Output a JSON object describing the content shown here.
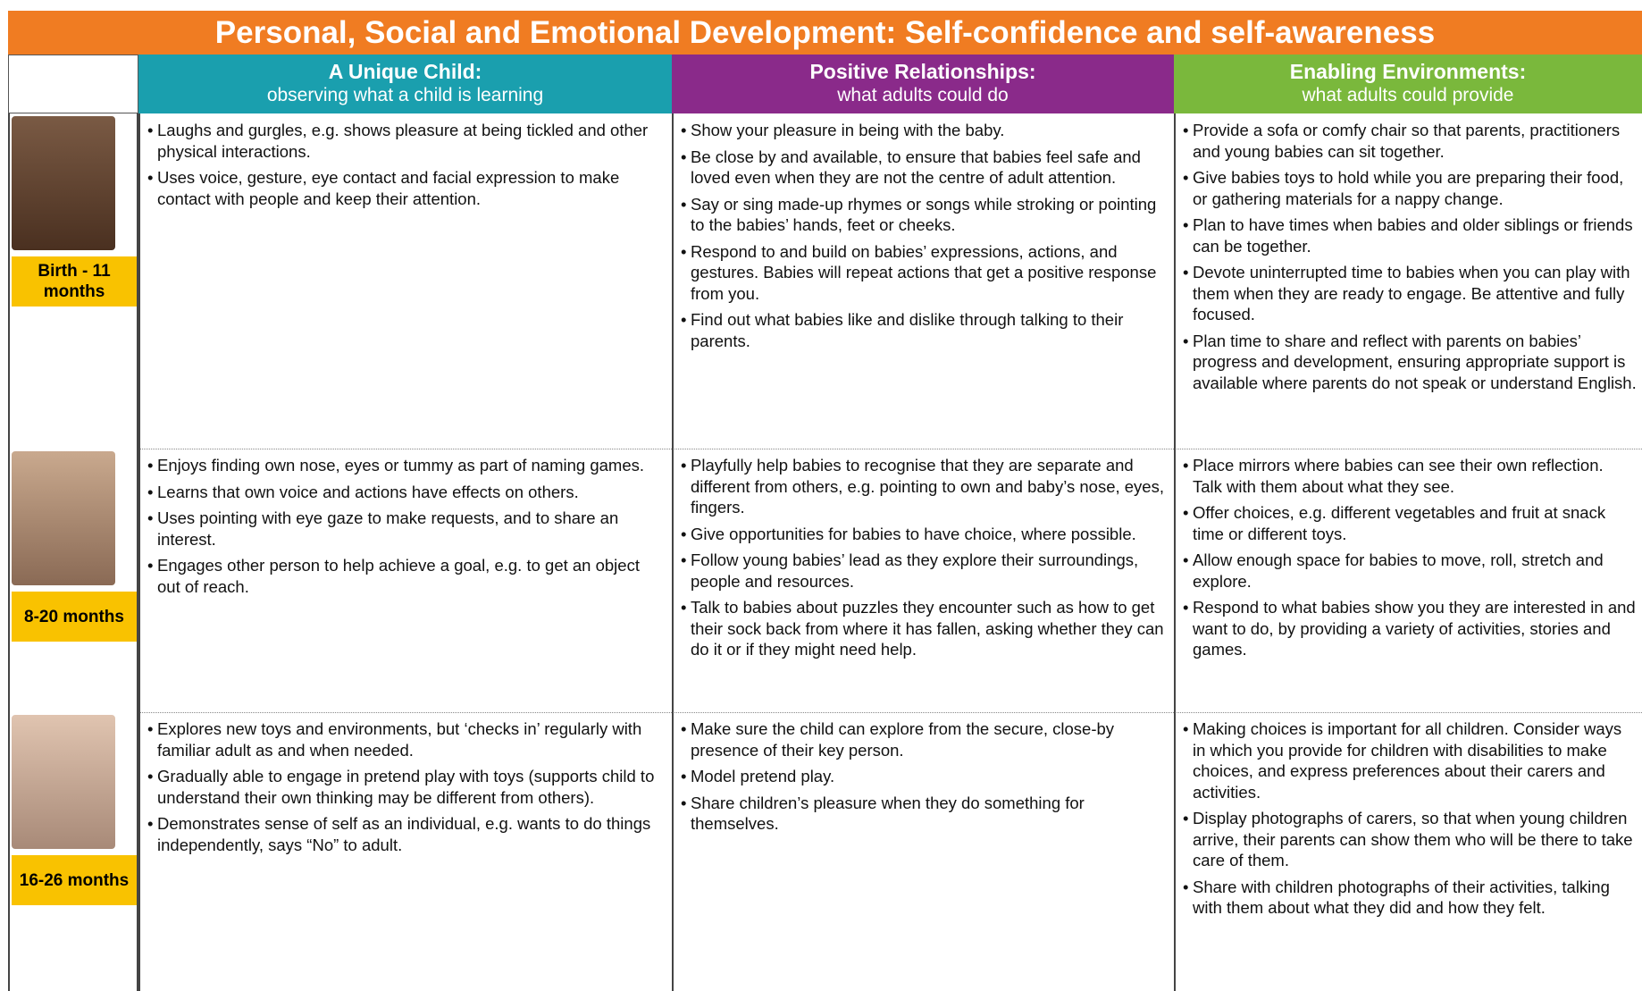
{
  "title": "Personal, Social and Emotional Development: Self-confidence and self-awareness",
  "columns": [
    {
      "title": "A Unique Child:",
      "subtitle": "observing what a child is learning"
    },
    {
      "title": "Positive Relationships:",
      "subtitle": "what adults could do"
    },
    {
      "title": "Enabling Environments:",
      "subtitle": "what adults could provide"
    }
  ],
  "rows": [
    {
      "age": "Birth - 11 months",
      "cells": [
        [
          "Laughs and gurgles, e.g. shows pleasure at being tickled and other physical interactions.",
          "Uses voice, gesture, eye contact and facial expression to make contact with people and keep their attention."
        ],
        [
          "Show your pleasure in being with the baby.",
          "Be close by and available, to ensure that babies feel safe and loved even when they are not the centre of adult attention.",
          "Say or sing made-up rhymes or songs while stroking or pointing to the babies’ hands, feet or cheeks.",
          "Respond to and build on babies’ expressions, actions, and gestures.  Babies will repeat actions that get a positive response from you.",
          "Find out what babies like and dislike through talking to their parents."
        ],
        [
          "Provide a sofa or comfy chair so that parents, practitioners and young babies can sit together.",
          "Give babies toys to hold while you are preparing their food, or gathering materials for a nappy change.",
          "Plan to have times when babies and older siblings or friends can be together.",
          "Devote uninterrupted time to babies when you can play with them when they are ready to engage. Be attentive and fully focused.",
          "Plan time to share and reflect with parents on babies’ progress and development, ensuring appropriate support is available where parents do not speak or understand English."
        ]
      ]
    },
    {
      "age": "8-20 months",
      "cells": [
        [
          "Enjoys finding own nose, eyes or tummy as part of naming games.",
          "Learns that own voice and actions have effects on others.",
          "Uses pointing with eye gaze to make requests, and to share an interest.",
          "Engages other person to help achieve a goal, e.g. to get an object out of reach."
        ],
        [
          "Playfully help babies to recognise that they are separate and different from others, e.g. pointing to own and baby’s nose, eyes, fingers.",
          "Give opportunities for babies to have choice, where possible.",
          "Follow young babies’ lead as they explore their surroundings, people and resources.",
          "Talk to babies about puzzles they encounter such as how to get their sock back from where it has fallen, asking whether they can do it or if they might need help."
        ],
        [
          "Place mirrors where babies can see their own reflection. Talk with them about what they see.",
          "Offer choices, e.g. different vegetables and fruit at snack time or different toys.",
          "Allow enough space for babies to move, roll, stretch and explore.",
          "Respond to what babies show you they are interested in and want to do, by providing a variety of activities, stories and games."
        ]
      ]
    },
    {
      "age": "16-26 months",
      "cells": [
        [
          "Explores new toys and environments, but ‘checks in’ regularly with familiar adult as and when needed.",
          "Gradually able to engage in pretend play with toys (supports child to understand their own thinking may be different from others).",
          "Demonstrates sense of self as an individual, e.g. wants to do things independently, says “No” to adult."
        ],
        [
          "Make sure the child can explore from the secure, close-by presence of their key person.",
          "Model pretend play.",
          "Share children’s pleasure when they do something for themselves."
        ],
        [
          "Making choices is important for all children. Consider ways in which you provide for children with disabilities to make choices, and express preferences about their carers and activities.",
          "Display photographs of carers, so that when young children arrive, their parents can show them who will be there to take care of them.",
          "Share with children photographs of their activities, talking with them about what they did and how they felt."
        ]
      ]
    }
  ]
}
